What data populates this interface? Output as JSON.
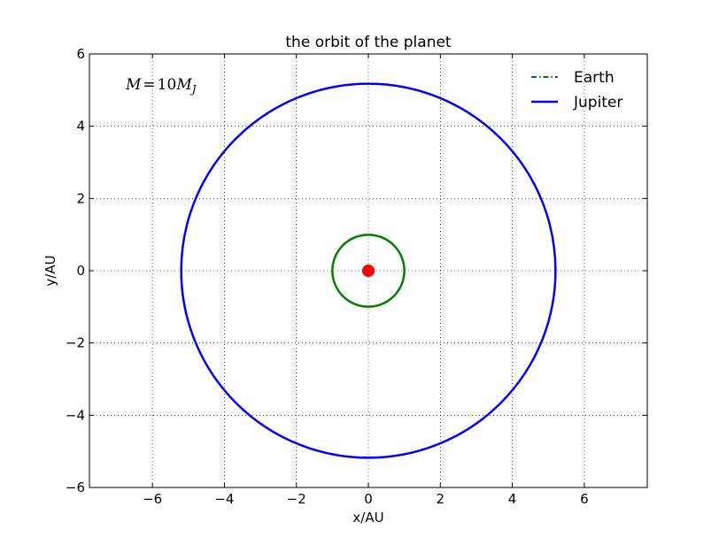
{
  "chart_data": {
    "type": "line",
    "title": "the orbit of the planet",
    "xlabel": "x/AU",
    "ylabel": "y/AU",
    "xlim": [
      -7.75,
      7.75
    ],
    "ylim": [
      -6,
      6
    ],
    "xticks": [
      -6,
      -4,
      -2,
      0,
      2,
      4,
      6
    ],
    "yticks": [
      -6,
      -4,
      -2,
      0,
      2,
      4,
      6
    ],
    "xtick_labels": [
      "−6",
      "−4",
      "−2",
      "0",
      "2",
      "4",
      "6"
    ],
    "ytick_labels": [
      "−6",
      "−4",
      "−2",
      "0",
      "2",
      "4",
      "6"
    ],
    "grid": true,
    "legend_position": "top-right",
    "annotation": "M=10M_J",
    "series": [
      {
        "name": "Earth",
        "color": "#008000",
        "line_style": "dash-dot",
        "shape": "circle",
        "center": [
          0,
          0
        ],
        "radius": 1.0
      },
      {
        "name": "Jupiter",
        "color": "#0000ff",
        "line_style": "solid",
        "shape": "circle",
        "center": [
          0,
          0
        ],
        "radius": 5.2
      }
    ],
    "points": [
      {
        "x": 0,
        "y": 0,
        "color": "#ff0000"
      }
    ]
  }
}
